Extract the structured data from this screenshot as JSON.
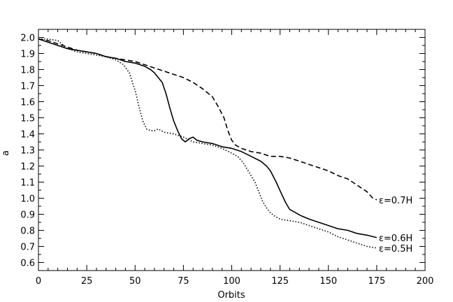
{
  "chart_data": {
    "type": "line",
    "xlabel": "Orbits",
    "ylabel": "a",
    "xlim": [
      0,
      200
    ],
    "ylim": [
      0.55,
      2.05
    ],
    "xticks": [
      0,
      25,
      50,
      75,
      100,
      125,
      150,
      175,
      200
    ],
    "yticks": [
      0.6,
      0.7,
      0.8,
      0.9,
      1.0,
      1.1,
      1.2,
      1.3,
      1.4,
      1.5,
      1.6,
      1.7,
      1.8,
      1.9,
      2.0
    ],
    "grid": false,
    "series": [
      {
        "name": "ε=0.7H",
        "style": "dashed",
        "x": [
          0,
          5,
          10,
          15,
          20,
          25,
          30,
          35,
          40,
          45,
          50,
          55,
          60,
          65,
          70,
          75,
          80,
          85,
          90,
          93,
          96,
          98,
          100,
          102,
          105,
          110,
          115,
          120,
          125,
          130,
          135,
          140,
          145,
          150,
          155,
          160,
          165,
          170,
          173,
          175
        ],
        "y": [
          1.99,
          1.98,
          1.96,
          1.94,
          1.92,
          1.91,
          1.9,
          1.88,
          1.87,
          1.86,
          1.85,
          1.83,
          1.81,
          1.79,
          1.77,
          1.75,
          1.72,
          1.68,
          1.63,
          1.57,
          1.5,
          1.42,
          1.36,
          1.33,
          1.31,
          1.29,
          1.28,
          1.26,
          1.26,
          1.25,
          1.23,
          1.21,
          1.19,
          1.17,
          1.14,
          1.12,
          1.08,
          1.04,
          1.0,
          0.99
        ]
      },
      {
        "name": "ε=0.6H",
        "style": "solid",
        "x": [
          0,
          5,
          10,
          15,
          20,
          25,
          30,
          35,
          40,
          45,
          50,
          55,
          58,
          60,
          62,
          64,
          66,
          68,
          70,
          72,
          74,
          76,
          78,
          80,
          82,
          85,
          90,
          95,
          100,
          105,
          110,
          115,
          118,
          120,
          123,
          126,
          128,
          130,
          133,
          136,
          140,
          145,
          150,
          155,
          160,
          165,
          170,
          175
        ],
        "y": [
          1.99,
          1.97,
          1.95,
          1.93,
          1.92,
          1.91,
          1.9,
          1.88,
          1.87,
          1.85,
          1.84,
          1.82,
          1.8,
          1.78,
          1.75,
          1.72,
          1.65,
          1.56,
          1.48,
          1.42,
          1.37,
          1.35,
          1.37,
          1.38,
          1.36,
          1.35,
          1.34,
          1.32,
          1.31,
          1.29,
          1.26,
          1.23,
          1.2,
          1.17,
          1.1,
          1.02,
          0.97,
          0.93,
          0.91,
          0.89,
          0.87,
          0.85,
          0.83,
          0.81,
          0.8,
          0.78,
          0.77,
          0.755
        ]
      },
      {
        "name": "ε=0.5H",
        "style": "dotted",
        "x": [
          0,
          5,
          10,
          15,
          20,
          25,
          30,
          35,
          40,
          44,
          47,
          50,
          52,
          54,
          56,
          58,
          60,
          62,
          65,
          70,
          75,
          80,
          85,
          90,
          95,
          100,
          103,
          106,
          109,
          112,
          114,
          116,
          118,
          120,
          122,
          125,
          130,
          135,
          140,
          145,
          150,
          155,
          160,
          165,
          170,
          175
        ],
        "y": [
          1.99,
          1.99,
          1.98,
          1.93,
          1.91,
          1.9,
          1.89,
          1.88,
          1.86,
          1.83,
          1.78,
          1.67,
          1.57,
          1.48,
          1.43,
          1.42,
          1.42,
          1.43,
          1.41,
          1.4,
          1.38,
          1.35,
          1.34,
          1.33,
          1.31,
          1.28,
          1.26,
          1.22,
          1.16,
          1.1,
          1.04,
          0.98,
          0.94,
          0.91,
          0.89,
          0.87,
          0.86,
          0.85,
          0.83,
          0.81,
          0.79,
          0.76,
          0.74,
          0.72,
          0.7,
          0.69
        ]
      }
    ]
  }
}
